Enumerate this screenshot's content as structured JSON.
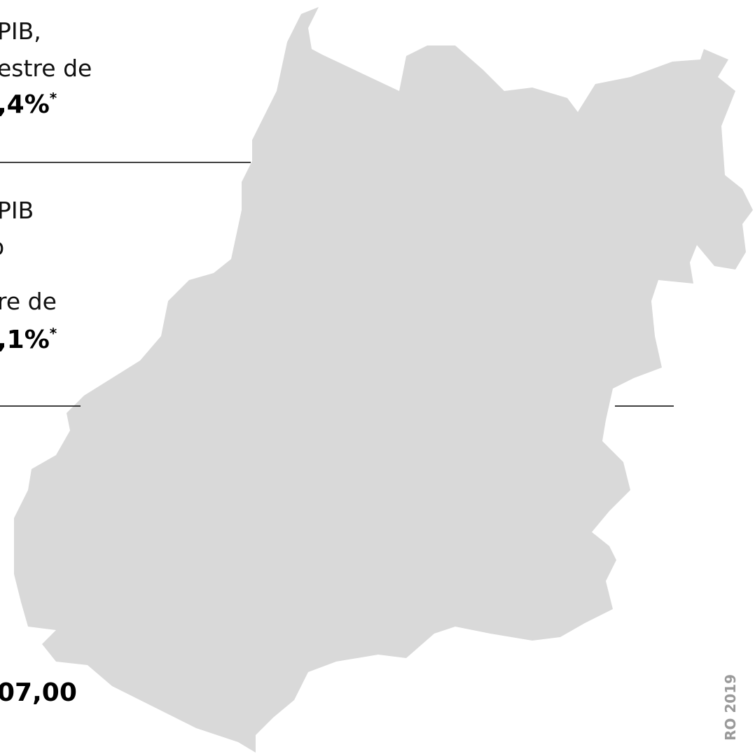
{
  "blocks": [
    {
      "lines": [
        "PIB,",
        "estre de"
      ],
      "value": ",4%",
      "mark": "*"
    },
    {
      "lines": [
        "PIB",
        "o",
        "re de"
      ],
      "value": ",1%",
      "mark": "*"
    }
  ],
  "bottom_value": "07,00",
  "source": "RO 2019"
}
